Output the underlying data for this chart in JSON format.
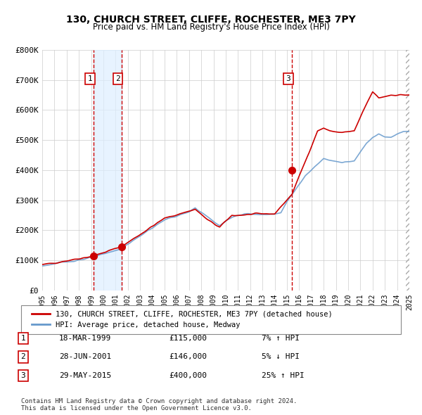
{
  "title": "130, CHURCH STREET, CLIFFE, ROCHESTER, ME3 7PY",
  "subtitle": "Price paid vs. HM Land Registry's House Price Index (HPI)",
  "xlabel": "",
  "ylabel": "",
  "ylim": [
    0,
    800000
  ],
  "xlim": [
    1995,
    2025
  ],
  "yticks": [
    0,
    100000,
    200000,
    300000,
    400000,
    500000,
    600000,
    700000,
    800000
  ],
  "ytick_labels": [
    "£0",
    "£100K",
    "£200K",
    "£300K",
    "£400K",
    "£500K",
    "£600K",
    "£700K",
    "£800K"
  ],
  "xticks": [
    1995,
    1996,
    1997,
    1998,
    1999,
    2000,
    2001,
    2002,
    2003,
    2004,
    2005,
    2006,
    2007,
    2008,
    2009,
    2010,
    2011,
    2012,
    2013,
    2014,
    2015,
    2016,
    2017,
    2018,
    2019,
    2020,
    2021,
    2022,
    2023,
    2024,
    2025
  ],
  "transactions": [
    {
      "num": 1,
      "date": "18-MAR-1999",
      "year": 1999.21,
      "price": 115000,
      "pct": "7%",
      "dir": "↑"
    },
    {
      "num": 2,
      "date": "28-JUN-2001",
      "year": 2001.49,
      "price": 146000,
      "pct": "5%",
      "dir": "↓"
    },
    {
      "num": 3,
      "date": "29-MAY-2015",
      "year": 2015.41,
      "price": 400000,
      "pct": "25%",
      "dir": "↑"
    }
  ],
  "line_color_red": "#cc0000",
  "line_color_blue": "#6699cc",
  "dot_color": "#cc0000",
  "vline_color": "#cc0000",
  "shade_color": "#ddeeff",
  "bg_color": "#ffffff",
  "grid_color": "#cccccc",
  "label_red": "130, CHURCH STREET, CLIFFE, ROCHESTER, ME3 7PY (detached house)",
  "label_blue": "HPI: Average price, detached house, Medway",
  "footer": "Contains HM Land Registry data © Crown copyright and database right 2024.\nThis data is licensed under the Open Government Licence v3.0.",
  "hpi_base_value": 85000,
  "sale_base_value": 85000
}
